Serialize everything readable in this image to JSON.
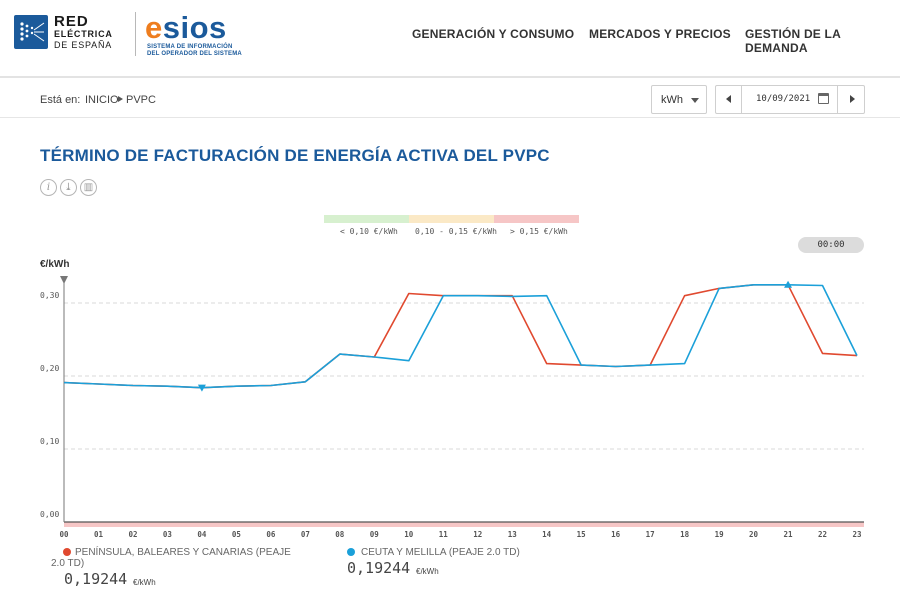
{
  "brand": {
    "ree_line1": "RED",
    "ree_line2": "ELÉCTRICA",
    "ree_line3": "DE ESPAÑA",
    "esios_prefix": "e",
    "esios_rest": "sios",
    "esios_sub1": "SISTEMA DE INFORMACIÓN",
    "esios_sub2": "DEL OPERADOR DEL SISTEMA"
  },
  "nav": [
    "GENERACIÓN Y CONSUMO",
    "MERCADOS Y PRECIOS",
    "GESTIÓN DE LA DEMANDA"
  ],
  "breadcrumb": {
    "prefix": "Está en:",
    "home": "INICIO",
    "current": "PVPC"
  },
  "controls": {
    "unit": "kWh",
    "date": "10/09/2021"
  },
  "page_title": "TÉRMINO DE FACTURACIÓN DE ENERGÍA ACTIVA DEL PVPC",
  "tools": [
    {
      "icon": "info-icon",
      "glyph": "i"
    },
    {
      "icon": "download-icon",
      "glyph": "⤓"
    },
    {
      "icon": "chart-icon",
      "glyph": "▥"
    }
  ],
  "price_bands": [
    {
      "label": "< 0,10 €/kWh",
      "color": "#d7f0cf"
    },
    {
      "label": "0,10 - 0,15 €/kWh",
      "color": "#fbe9c6"
    },
    {
      "label": "> 0,15 €/kWh",
      "color": "#f6c6c6"
    }
  ],
  "time_badge": "00:00",
  "chart_data": {
    "type": "line",
    "ylabel": "€/kWh",
    "ylim": [
      0,
      0.3
    ],
    "y_ticks": [
      "0,00",
      "0,10",
      "0,20",
      "0,30"
    ],
    "y_tick_values": [
      0,
      0.1,
      0.2,
      0.3
    ],
    "grid": "horizontal dashed",
    "x": [
      "00",
      "01",
      "02",
      "03",
      "04",
      "05",
      "06",
      "07",
      "08",
      "09",
      "10",
      "11",
      "12",
      "13",
      "14",
      "15",
      "16",
      "17",
      "18",
      "19",
      "20",
      "21",
      "22",
      "23"
    ],
    "series": [
      {
        "name": "PENÍNSULA, BALEARES Y CANARIAS (PEAJE 2.0 TD)",
        "color": "#e0492f",
        "values": [
          0.191,
          0.189,
          0.187,
          0.186,
          0.184,
          0.186,
          0.187,
          0.192,
          0.23,
          0.226,
          0.313,
          0.31,
          0.31,
          0.31,
          0.217,
          0.215,
          0.213,
          0.215,
          0.31,
          0.32,
          0.325,
          0.325,
          0.231,
          0.228
        ]
      },
      {
        "name": "CEUTA Y MELILLA (PEAJE 2.0 TD)",
        "color": "#1ba0d9",
        "values": [
          0.191,
          0.189,
          0.187,
          0.186,
          0.184,
          0.186,
          0.187,
          0.192,
          0.23,
          0.226,
          0.221,
          0.31,
          0.31,
          0.309,
          0.31,
          0.215,
          0.213,
          0.215,
          0.217,
          0.32,
          0.325,
          0.325,
          0.324,
          0.228
        ]
      }
    ],
    "markers": [
      {
        "series": 1,
        "x": "04",
        "shape": "triangle-down"
      },
      {
        "series": 1,
        "x": "21",
        "shape": "triangle-up"
      }
    ]
  },
  "legend": [
    {
      "name": "PENÍNSULA, BALEARES Y CANARIAS (PEAJE",
      "name2": "2.0 TD)",
      "value": "0,19244",
      "unit": "€/kWh",
      "color": "#e0492f"
    },
    {
      "name": "CEUTA Y MELILLA (PEAJE 2.0 TD)",
      "name2": "",
      "value": "0,19244",
      "unit": "€/kWh",
      "color": "#1ba0d9"
    }
  ]
}
